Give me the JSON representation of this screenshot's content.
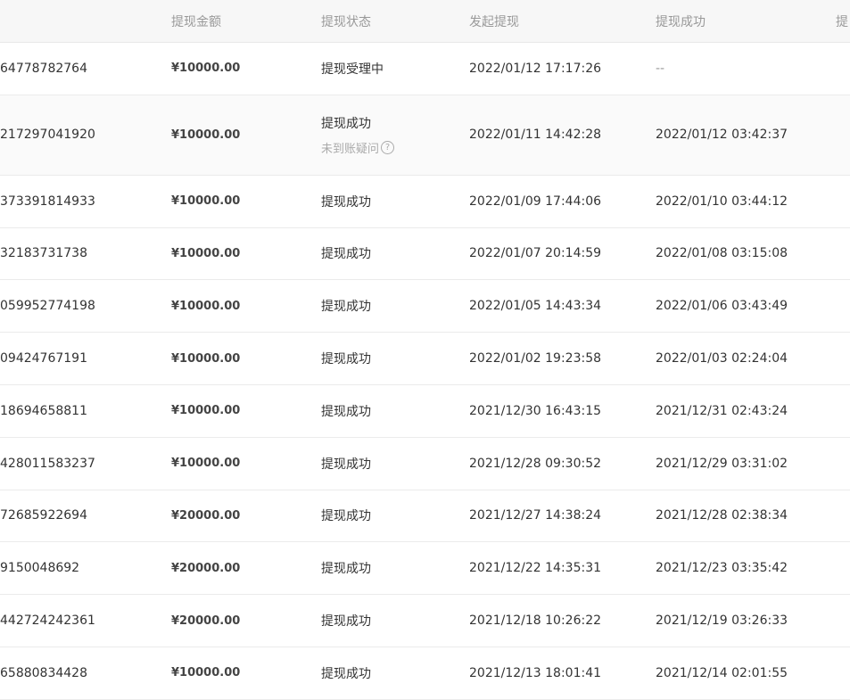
{
  "columns": [
    "",
    "提现金额",
    "提现状态",
    "发起提现",
    "提现成功",
    "提"
  ],
  "rows": [
    {
      "id": "64778782764",
      "amount": "¥10000.00",
      "status": "提现受理中",
      "start": "2022/01/12 17:17:26",
      "success": "--"
    },
    {
      "id": "217297041920",
      "amount": "¥10000.00",
      "status": "提现成功",
      "status_link": "未到账疑问",
      "start": "2022/01/11 14:42:28",
      "success": "2022/01/12 03:42:37"
    },
    {
      "id": "373391814933",
      "amount": "¥10000.00",
      "status": "提现成功",
      "start": "2022/01/09 17:44:06",
      "success": "2022/01/10 03:44:12"
    },
    {
      "id": "32183731738",
      "amount": "¥10000.00",
      "status": "提现成功",
      "start": "2022/01/07 20:14:59",
      "success": "2022/01/08 03:15:08"
    },
    {
      "id": "059952774198",
      "amount": "¥10000.00",
      "status": "提现成功",
      "start": "2022/01/05 14:43:34",
      "success": "2022/01/06 03:43:49"
    },
    {
      "id": "09424767191",
      "amount": "¥10000.00",
      "status": "提现成功",
      "start": "2022/01/02 19:23:58",
      "success": "2022/01/03 02:24:04"
    },
    {
      "id": "18694658811",
      "amount": "¥10000.00",
      "status": "提现成功",
      "start": "2021/12/30 16:43:15",
      "success": "2021/12/31 02:43:24"
    },
    {
      "id": "428011583237",
      "amount": "¥10000.00",
      "status": "提现成功",
      "start": "2021/12/28 09:30:52",
      "success": "2021/12/29 03:31:02"
    },
    {
      "id": "72685922694",
      "amount": "¥20000.00",
      "status": "提现成功",
      "start": "2021/12/27 14:38:24",
      "success": "2021/12/28 02:38:34"
    },
    {
      "id": "9150048692",
      "amount": "¥20000.00",
      "status": "提现成功",
      "start": "2021/12/22 14:35:31",
      "success": "2021/12/23 03:35:42"
    },
    {
      "id": "442724242361",
      "amount": "¥20000.00",
      "status": "提现成功",
      "start": "2021/12/18 10:26:22",
      "success": "2021/12/19 03:26:33"
    },
    {
      "id": "65880834428",
      "amount": "¥10000.00",
      "status": "提现成功",
      "start": "2021/12/13 18:01:41",
      "success": "2021/12/14 02:01:55"
    }
  ],
  "icons": {
    "help": "question-circle-icon"
  },
  "help_glyph": "?"
}
